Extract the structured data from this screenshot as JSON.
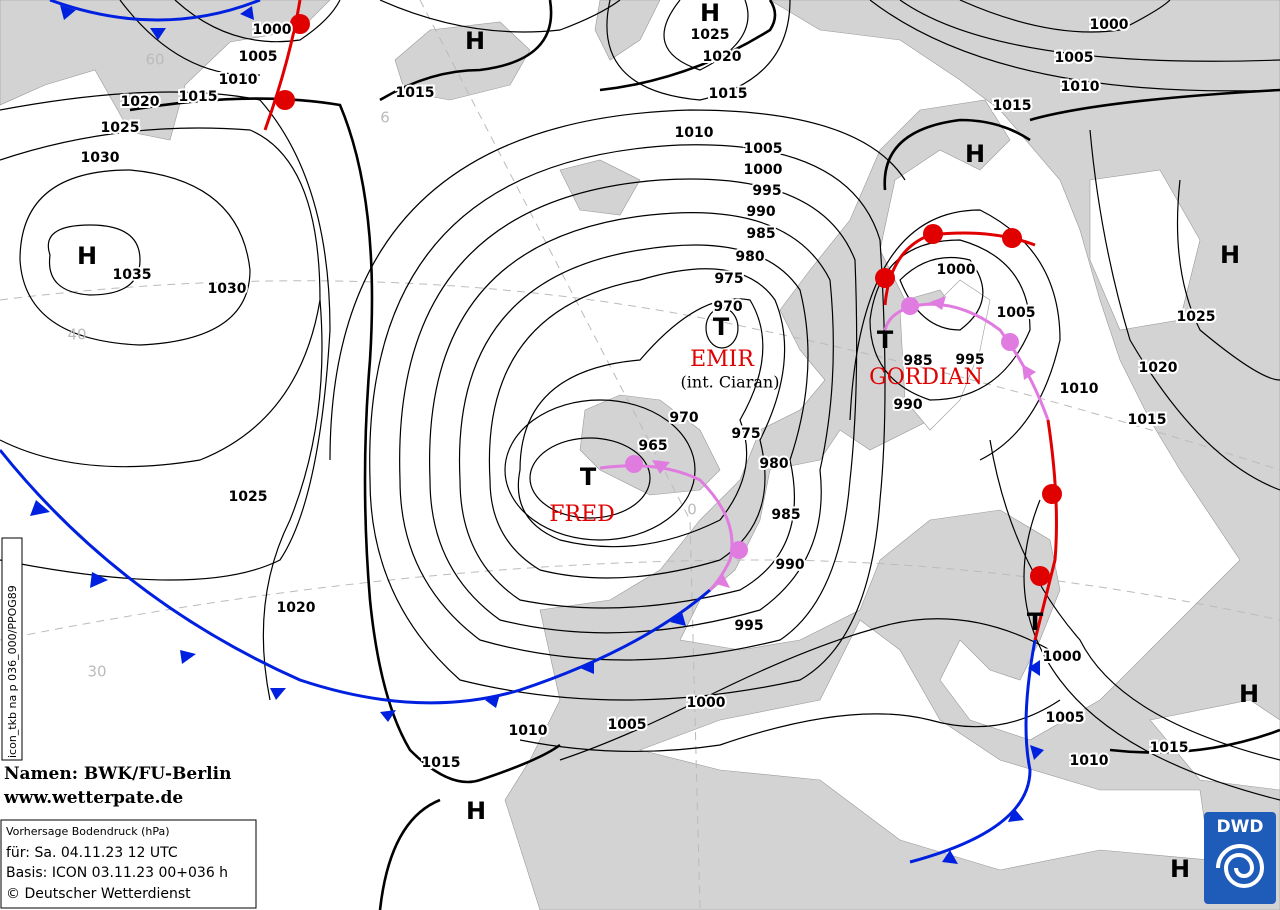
{
  "isobar_labels": [
    1000,
    1005,
    1010,
    1015,
    1020,
    1025,
    1030,
    1035,
    1030,
    1025,
    1020,
    1015,
    1025,
    1020,
    1015,
    1010,
    1005,
    1000,
    995,
    990,
    985,
    980,
    975,
    970,
    970,
    965,
    975,
    980,
    985,
    990,
    995,
    1000,
    1005,
    1010,
    1015,
    1000,
    1005,
    1010,
    1015,
    1000,
    1005,
    985,
    995,
    990,
    1010,
    1020,
    1025,
    1015,
    1000,
    1005,
    1010,
    1015
  ],
  "high_markers": [
    "H",
    "H",
    "H",
    "H",
    "H",
    "H",
    "H",
    "H"
  ],
  "low_markers": [
    "T",
    "T",
    "T",
    "T"
  ],
  "systems": {
    "emir": "EMIR",
    "emir_note": "(int. Ciaran)",
    "fred": "FRED",
    "gordian": "GORDIAN"
  },
  "graticule_labels": [
    "60",
    "6",
    "40",
    "30",
    "0"
  ],
  "side_label": "icon_tkb na p 036_000/PPOG89",
  "credits": {
    "names": "Namen: BWK/FU-Berlin",
    "url": "www.wetterpate.de"
  },
  "info_box": {
    "line1": "Vorhersage Bodendruck (hPa)",
    "line2": "für:  Sa. 04.11.23  12 UTC",
    "line3": "Basis: ICON  03.11.23 00+036 h",
    "line4": "© Deutscher Wetterdienst"
  },
  "logo": "DWD"
}
